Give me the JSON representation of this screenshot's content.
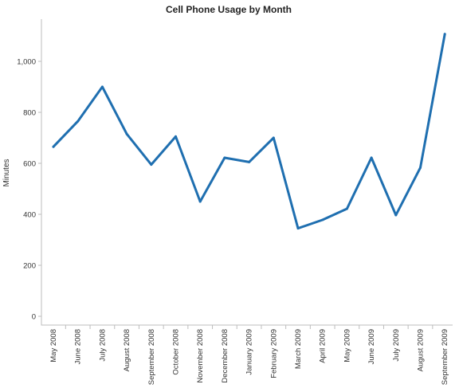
{
  "chart_data": {
    "type": "line",
    "title": "Cell Phone Usage by Month",
    "xlabel": "",
    "ylabel": "Minutes",
    "ylim": [
      0,
      1100
    ],
    "yticks": [
      {
        "value": 0,
        "label": "0"
      },
      {
        "value": 200,
        "label": "200"
      },
      {
        "value": 400,
        "label": "400"
      },
      {
        "value": 600,
        "label": "600"
      },
      {
        "value": 800,
        "label": "800"
      },
      {
        "value": 1000,
        "label": "1,000"
      }
    ],
    "categories": [
      "May 2008",
      "June 2008",
      "July 2008",
      "August 2008",
      "September 2008",
      "October 2008",
      "November 2008",
      "December 2008",
      "January 2009",
      "February 2009",
      "March 2009",
      "April 2009",
      "May 2009",
      "June 2009",
      "July 2009",
      "August 2009",
      "September 2009"
    ],
    "values": [
      665,
      765,
      900,
      715,
      595,
      705,
      450,
      622,
      605,
      700,
      345,
      378,
      422,
      622,
      397,
      583,
      1107
    ],
    "grid": false,
    "legend": "none",
    "color": "#1f6fb0"
  }
}
